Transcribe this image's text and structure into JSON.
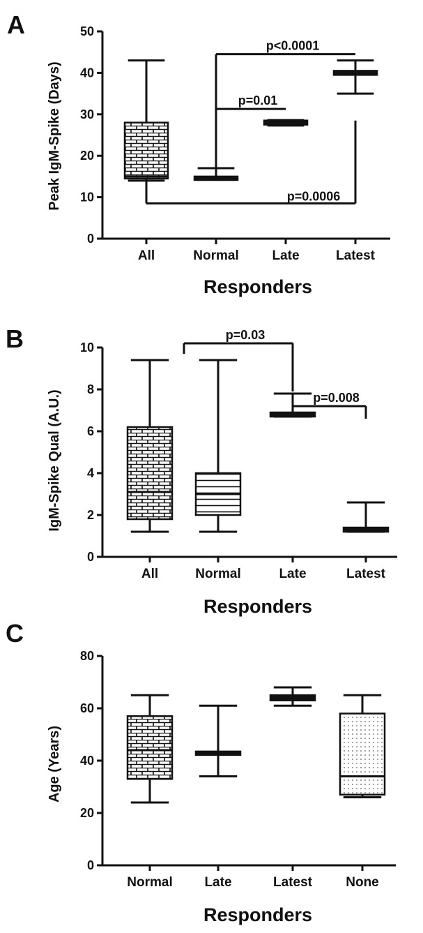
{
  "chart_data": [
    {
      "type": "box",
      "panel": "A",
      "xlabel": "Responders",
      "ylabel": "Peak  IgM-Spike (Days)",
      "ylim": [
        0,
        50
      ],
      "yticks": [
        0,
        10,
        20,
        30,
        40,
        50
      ],
      "categories": [
        "All",
        "Normal",
        "Late",
        "Latest"
      ],
      "boxes": [
        {
          "min": 14,
          "q1": 14.5,
          "median": 15,
          "q3": 28,
          "max": 43,
          "fill": "brick"
        },
        {
          "min": 14.2,
          "q1": 14.2,
          "median": 14.6,
          "q3": 15,
          "max": 17,
          "fill": "solid"
        },
        {
          "min": 27.3,
          "q1": 27.5,
          "median": 28,
          "q3": 28.5,
          "max": 28.6,
          "fill": "solid"
        },
        {
          "min": 35,
          "q1": 39.5,
          "median": 40,
          "q3": 40.5,
          "max": 43,
          "fill": "solid"
        }
      ],
      "significance": [
        {
          "label": "p<0.0001",
          "from": 1,
          "to": 3,
          "y": 44.5,
          "drop_from": 15,
          "drop_to": 44.5
        },
        {
          "label": "p=0.01",
          "from": 1,
          "to": 2,
          "y": 31.3,
          "drop_from": 31.3,
          "drop_to": 31.3
        },
        {
          "label": "p=0.0006",
          "from": 0,
          "to": 3,
          "y": 8.5,
          "drop_from": 14,
          "drop_to": 28.5,
          "below": true
        }
      ]
    },
    {
      "type": "box",
      "panel": "B",
      "xlabel": "Responders",
      "ylabel": "IgM-Spike Qual (A.U.)",
      "ylim": [
        0,
        10
      ],
      "yticks": [
        0,
        2,
        4,
        6,
        8,
        10
      ],
      "categories": [
        "All",
        "Normal",
        "Late",
        "Latest"
      ],
      "boxes": [
        {
          "min": 1.2,
          "q1": 1.8,
          "median": 3.1,
          "q3": 6.2,
          "max": 9.4,
          "fill": "brick"
        },
        {
          "min": 1.2,
          "q1": 2.0,
          "median": 3.0,
          "q3": 4.0,
          "max": 9.4,
          "fill": "lines"
        },
        {
          "min": 6.7,
          "q1": 6.7,
          "median": 6.8,
          "q3": 6.9,
          "max": 7.8,
          "fill": "solid"
        },
        {
          "min": 1.2,
          "q1": 1.2,
          "median": 1.3,
          "q3": 1.4,
          "max": 2.6,
          "fill": "solid"
        }
      ],
      "significance": [
        {
          "label": "p=0.03",
          "from": 0.5,
          "to": 2,
          "y": 10.2,
          "drop_from": 9.7,
          "drop_to": 7.9
        },
        {
          "label": "p=0.008",
          "from": 2,
          "to": 3,
          "y": 7.2,
          "drop_from": 7.2,
          "drop_to": 6.6
        }
      ]
    },
    {
      "type": "box",
      "panel": "C",
      "xlabel": "Responders",
      "ylabel": "Age  (Years)",
      "ylim": [
        0,
        80
      ],
      "yticks": [
        0,
        20,
        40,
        60,
        80
      ],
      "categories": [
        "Normal",
        "Late",
        "Latest",
        "None"
      ],
      "boxes": [
        {
          "min": 24,
          "q1": 33,
          "median": 44,
          "q3": 57,
          "max": 65,
          "fill": "brick"
        },
        {
          "min": 34,
          "q1": 42.5,
          "median": 43,
          "q3": 43.5,
          "max": 61,
          "fill": "solid"
        },
        {
          "min": 61,
          "q1": 63,
          "median": 64,
          "q3": 65,
          "max": 68,
          "fill": "solid"
        },
        {
          "min": 26,
          "q1": 27,
          "median": 34,
          "q3": 58,
          "max": 65,
          "fill": "dots"
        }
      ],
      "significance": []
    }
  ]
}
